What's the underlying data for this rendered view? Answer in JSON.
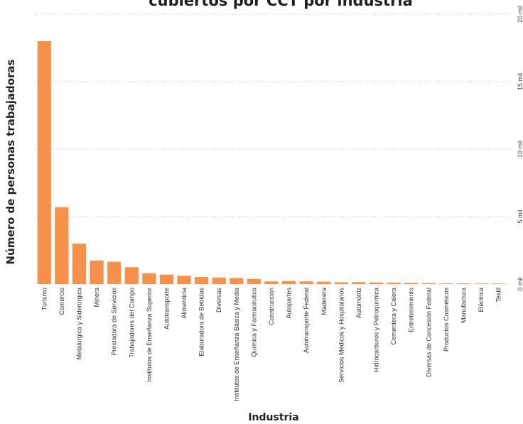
{
  "chart_data": {
    "type": "bar",
    "title": "cubiertos por CCT por industria",
    "xlabel": "Industria",
    "ylabel": "Número de personas trabajadoras",
    "ylim": [
      0,
      20000
    ],
    "yticks": [
      0,
      5000,
      10000,
      15000,
      20000
    ],
    "ytick_labels": [
      "0 mil",
      "5 mil",
      "10 mil",
      "15 mil",
      "20 mil"
    ],
    "y_axis_side": "right",
    "grid": true,
    "bar_color": "#F7914A",
    "categories": [
      "Turismo",
      "Comercio",
      "Metalúrgica y Siderúrgica",
      "Minera",
      "Prestadora de Servicios",
      "Trabajadores del Campo",
      "Institutos de Enseñanza Superior",
      "Autotransporte",
      "Alimenticia",
      "Elaboradora de Bebidas",
      "Diversas",
      "Institutos de Enseñanza Básica y Media",
      "Química y Farmacéutica",
      "Construcción",
      "Autopartes",
      "Autotransporte Federal",
      "Maderera",
      "Servicios Médicos y Hospitalarios",
      "Automotriz",
      "Hidrocarburos y Petroquímica",
      "Cementera y Calera",
      "Entretenimiento",
      "Diversas de Concesión Federal",
      "Productos Cosméticos",
      "Manufactura",
      "Eléctrica",
      "Textil"
    ],
    "values": [
      18000,
      5700,
      3000,
      1750,
      1650,
      1250,
      800,
      700,
      620,
      520,
      480,
      440,
      380,
      200,
      230,
      200,
      180,
      130,
      140,
      120,
      110,
      90,
      70,
      50,
      45,
      40,
      35
    ]
  }
}
